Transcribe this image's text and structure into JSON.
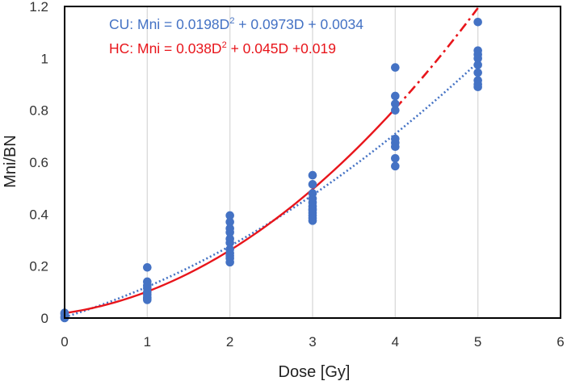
{
  "chart_data": {
    "type": "scatter",
    "title": "",
    "xlabel": "Dose [Gy]",
    "ylabel": "Mni/BN",
    "xlim": [
      0,
      6
    ],
    "ylim": [
      0,
      1.2
    ],
    "x_ticks": [
      "0",
      "1",
      "2",
      "3",
      "4",
      "5",
      "6"
    ],
    "y_ticks": [
      "0",
      "0.2",
      "0.4",
      "0.6",
      "0.8",
      "1",
      "1.2"
    ],
    "grid": "vertical",
    "points": {
      "color": "#4472c4",
      "x": [
        0,
        0,
        0,
        0,
        1,
        1,
        1,
        1,
        1,
        1,
        1,
        1,
        1,
        2,
        2,
        2,
        2,
        2,
        2,
        2,
        2,
        2,
        2,
        2,
        3,
        3,
        3,
        3,
        3,
        3,
        3,
        3,
        3,
        3,
        3,
        3,
        4,
        4,
        4,
        4,
        4,
        4,
        4,
        4,
        4,
        5,
        5,
        5,
        5,
        5,
        5,
        5,
        5,
        5
      ],
      "y": [
        0.02,
        0.015,
        0.005,
        0.0,
        0.195,
        0.14,
        0.125,
        0.115,
        0.1,
        0.09,
        0.08,
        0.075,
        0.07,
        0.395,
        0.37,
        0.345,
        0.33,
        0.305,
        0.29,
        0.265,
        0.25,
        0.24,
        0.23,
        0.215,
        0.55,
        0.515,
        0.48,
        0.46,
        0.445,
        0.43,
        0.42,
        0.405,
        0.395,
        0.385,
        0.375,
        0.415,
        0.965,
        0.855,
        0.825,
        0.8,
        0.69,
        0.675,
        0.66,
        0.615,
        0.585,
        1.14,
        1.03,
        1.015,
        1.0,
        0.975,
        0.945,
        0.915,
        0.9,
        0.89
      ]
    },
    "series": [
      {
        "color": "#4472c4",
        "style": "dotted",
        "coefficients": [
          0.0198,
          0.0973,
          0.0034
        ],
        "x_range": [
          0,
          5
        ]
      },
      {
        "color": "#e8151b",
        "style": "solid",
        "coefficients": [
          0.038,
          0.045,
          0.019
        ],
        "x_range": [
          0,
          4
        ]
      },
      {
        "color": "#e8151b",
        "style": "dash-dot",
        "coefficients": [
          0.038,
          0.045,
          0.019
        ],
        "x_range": [
          4,
          5
        ]
      }
    ],
    "annotations": {
      "cu": {
        "prefix": "CU: Mni = 0.0198D",
        "sup": "2",
        "suffix": " + 0.0973D + 0.0034",
        "color": "#4472c4"
      },
      "hc": {
        "prefix": "HC: Mni = 0.038D",
        "sup": "2",
        "suffix": " + 0.045D +0.019",
        "color": "#e8151b"
      }
    }
  }
}
